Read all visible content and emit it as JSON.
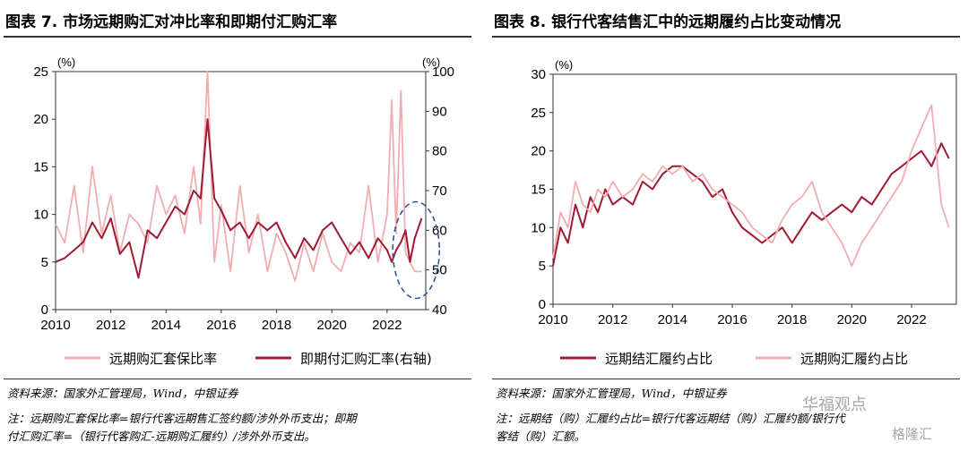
{
  "fig7": {
    "title": "图表 7. 市场远期购汇对冲比率和即期付汇购汇率",
    "source": "资料来源：国家外汇管理局，Wind，中银证券",
    "note_line1": "注：远期购汇套保比率=银行代客远期售汇签约额/涉外外币支出；即期",
    "note_line2": "付汇购汇率=（银行代客购汇-远期购汇履约）/涉外外币支出。"
  },
  "fig8": {
    "title": "图表 8. 银行代客结售汇中的远期履约占比变动情况",
    "source": "资料来源：国家外汇管理局，Wind，中银证券",
    "note_line1": "注：远期结（购）汇履约占比=银行代客远期结（购）汇履约额/银行代",
    "note_line2": "客结（购）汇额。"
  },
  "watermark": {
    "text1": "华福观点",
    "text2": "格隆汇"
  },
  "colors": {
    "dark": "#9e1b32",
    "light": "#f0aeb0"
  },
  "chart_data": [
    {
      "type": "line",
      "x": [
        2010.0,
        2010.33,
        2010.67,
        2011.0,
        2011.33,
        2011.67,
        2012.0,
        2012.33,
        2012.67,
        2013.0,
        2013.33,
        2013.67,
        2014.0,
        2014.33,
        2014.67,
        2015.0,
        2015.25,
        2015.5,
        2015.75,
        2016.0,
        2016.33,
        2016.67,
        2017.0,
        2017.33,
        2017.67,
        2018.0,
        2018.33,
        2018.67,
        2019.0,
        2019.33,
        2019.67,
        2020.0,
        2020.33,
        2020.67,
        2021.0,
        2021.33,
        2021.67,
        2022.0,
        2022.17,
        2022.33,
        2022.5,
        2022.67,
        2022.83,
        2023.0,
        2023.25
      ],
      "x_ticks": [
        "2010",
        "2012",
        "2014",
        "2016",
        "2018",
        "2020",
        "2022"
      ],
      "y_left_unit": "(%)",
      "y_right_unit": "(%)",
      "y_left_ticks": [
        "0",
        "5",
        "10",
        "15",
        "20",
        "25"
      ],
      "y_right_ticks": [
        "40",
        "50",
        "60",
        "70",
        "80",
        "90",
        "100"
      ],
      "ylim_left": [
        0,
        25
      ],
      "ylim_right": [
        40,
        100
      ],
      "series": [
        {
          "name": "远期购汇套保比率",
          "axis": "left",
          "color": "light",
          "values": [
            9,
            7,
            13,
            6,
            15,
            8,
            12,
            6,
            10,
            9,
            7,
            13,
            10,
            12,
            8,
            15,
            9,
            25,
            5,
            11,
            4,
            13,
            6,
            10,
            4,
            8,
            6,
            3,
            7,
            4,
            8,
            5,
            4,
            7,
            6,
            13,
            5,
            10,
            22,
            8,
            23,
            6,
            5,
            4,
            4
          ]
        },
        {
          "name": "即期付汇购汇率(右轴)",
          "axis": "right",
          "color": "dark",
          "values": [
            52,
            53,
            55,
            57,
            62,
            58,
            63,
            54,
            57,
            48,
            60,
            58,
            62,
            66,
            64,
            70,
            68,
            88,
            68,
            65,
            60,
            62,
            58,
            62,
            60,
            62,
            57,
            53,
            58,
            55,
            60,
            62,
            58,
            54,
            57,
            53,
            58,
            55,
            52,
            55,
            57,
            60,
            52,
            58,
            63
          ]
        }
      ]
    },
    {
      "type": "line",
      "x": [
        2010.0,
        2010.25,
        2010.5,
        2010.75,
        2011.0,
        2011.25,
        2011.5,
        2011.75,
        2012.0,
        2012.33,
        2012.67,
        2013.0,
        2013.33,
        2013.67,
        2014.0,
        2014.33,
        2014.67,
        2015.0,
        2015.33,
        2015.67,
        2016.0,
        2016.33,
        2016.67,
        2017.0,
        2017.33,
        2017.67,
        2018.0,
        2018.33,
        2018.67,
        2019.0,
        2019.33,
        2019.67,
        2020.0,
        2020.33,
        2020.67,
        2021.0,
        2021.33,
        2021.67,
        2022.0,
        2022.33,
        2022.67,
        2023.0,
        2023.25
      ],
      "x_ticks": [
        "2010",
        "2012",
        "2014",
        "2016",
        "2018",
        "2020",
        "2022"
      ],
      "y_unit": "(%)",
      "y_ticks": [
        "0",
        "5",
        "10",
        "15",
        "20",
        "25",
        "30"
      ],
      "ylim": [
        0,
        30
      ],
      "series": [
        {
          "name": "远期结汇履约占比",
          "color": "dark",
          "values": [
            5,
            10,
            8,
            13,
            10,
            14,
            12,
            15,
            13,
            14,
            13,
            16,
            15,
            17,
            18,
            18,
            17,
            16,
            14,
            15,
            12,
            10,
            9,
            8,
            9,
            10,
            8,
            10,
            12,
            11,
            12,
            13,
            12,
            14,
            13,
            15,
            17,
            18,
            19,
            20,
            18,
            21,
            19
          ]
        },
        {
          "name": "远期购汇履约占比",
          "color": "light",
          "values": [
            6,
            12,
            10,
            16,
            13,
            12,
            15,
            14,
            16,
            14,
            15,
            17,
            16,
            18,
            17,
            18,
            16,
            17,
            15,
            14,
            13,
            12,
            10,
            9,
            8,
            11,
            13,
            14,
            16,
            12,
            10,
            8,
            5,
            8,
            10,
            12,
            14,
            16,
            20,
            23,
            26,
            13,
            10
          ]
        }
      ]
    }
  ]
}
